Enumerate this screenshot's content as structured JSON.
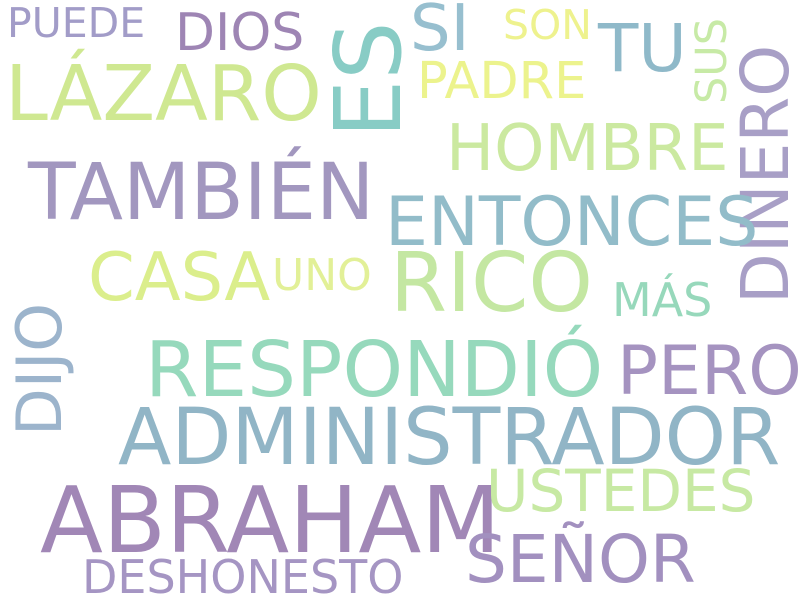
{
  "words": {
    "puede": {
      "text": "PUEDE",
      "color": "#a29cc8"
    },
    "dios": {
      "text": "DIOS",
      "color": "#9e85b4"
    },
    "es": {
      "text": "ES",
      "color": "#88ccc5"
    },
    "si": {
      "text": "SI",
      "color": "#97bfcf"
    },
    "son": {
      "text": "SON",
      "color": "#eef28e"
    },
    "tu": {
      "text": "TU",
      "color": "#8fb9c9"
    },
    "sus": {
      "text": "SUS",
      "color": "#c7eaa6"
    },
    "lazaro": {
      "text": "LÁZARO",
      "color": "#cfe891"
    },
    "padre": {
      "text": "PADRE",
      "color": "#ecf38d"
    },
    "dinero": {
      "text": "DINERO",
      "color": "#a89fc6"
    },
    "hombre": {
      "text": "HOMBRE",
      "color": "#cbe9a0"
    },
    "tambien": {
      "text": "TAMBIÉN",
      "color": "#a297bf"
    },
    "entonces": {
      "text": "ENTONCES",
      "color": "#92bcc9"
    },
    "casa": {
      "text": "CASA",
      "color": "#dbee8c"
    },
    "uno": {
      "text": "UNO",
      "color": "#e2f097"
    },
    "rico": {
      "text": "RICO",
      "color": "#c4e7a2"
    },
    "mas": {
      "text": "MÁS",
      "color": "#97d8bb"
    },
    "dijo": {
      "text": "DIJO",
      "color": "#9cb4cc"
    },
    "respondio": {
      "text": "RESPONDIÓ",
      "color": "#96d9bc"
    },
    "pero": {
      "text": "PERO",
      "color": "#a593c0"
    },
    "administrador": {
      "text": "ADMINISTRADOR",
      "color": "#91b5c6"
    },
    "abraham": {
      "text": "ABRAHAM",
      "color": "#a187b6"
    },
    "ustedes": {
      "text": "USTEDES",
      "color": "#c7e9a3"
    },
    "senor": {
      "text": "SEÑOR",
      "color": "#a290bf"
    },
    "deshonesto": {
      "text": "DESHONESTO",
      "color": "#a595c3"
    }
  }
}
